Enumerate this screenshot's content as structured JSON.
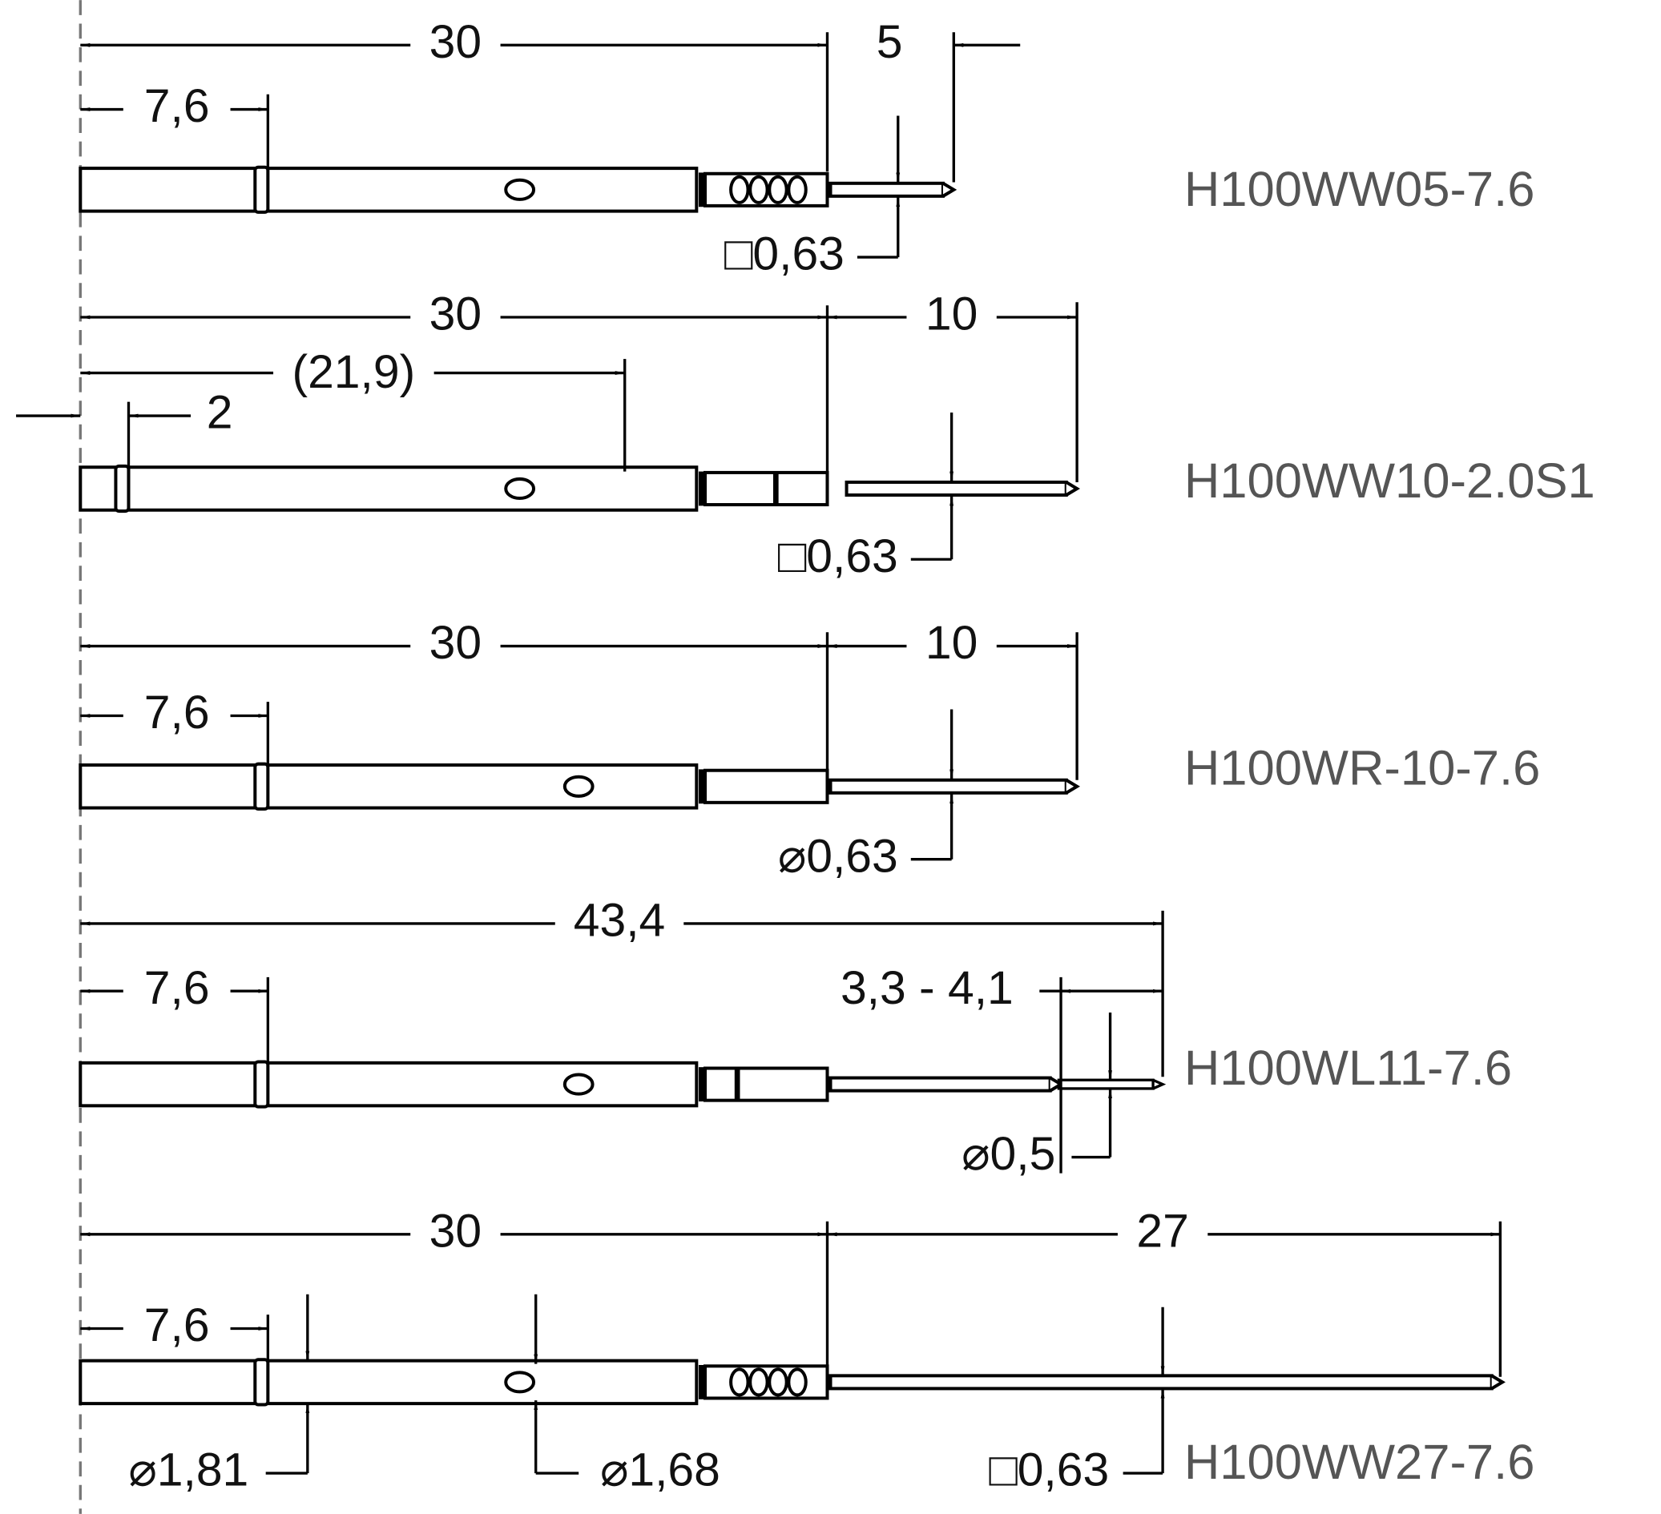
{
  "probes": [
    {
      "name": "H100WW05-7.6",
      "dims": [
        "30",
        "5",
        "7,6",
        "□0,63"
      ]
    },
    {
      "name": "H100WW10-2.0S1",
      "dims": [
        "30",
        "10",
        "(21,9)",
        "2",
        "□0,63"
      ]
    },
    {
      "name": "H100WR-10-7.6",
      "dims": [
        "30",
        "10",
        "7,6",
        "⌀0,63"
      ]
    },
    {
      "name": "H100WL11-7.6",
      "dims": [
        "43,4",
        "7,6",
        "3,3 - 4,1",
        "⌀0,5"
      ]
    },
    {
      "name": "H100WW27-7.6",
      "dims": [
        "30",
        "27",
        "7,6",
        "⌀1,81",
        "⌀1,68",
        "□0,63"
      ]
    }
  ]
}
